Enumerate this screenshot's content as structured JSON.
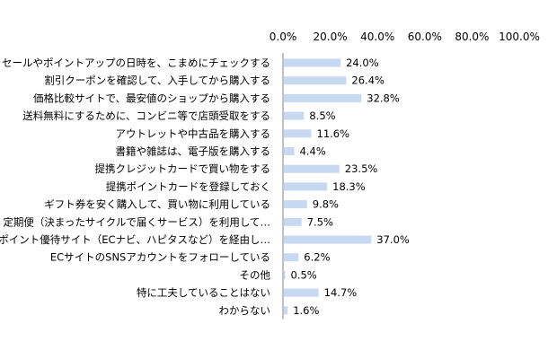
{
  "colors": {
    "bar": "#c6d9f1",
    "axis": "#808080",
    "text": "#000000"
  },
  "chart_data": {
    "type": "bar",
    "orientation": "horizontal",
    "title": "",
    "xlabel": "",
    "ylabel": "",
    "xlim": [
      0,
      100
    ],
    "x_ticks": [
      "0.0%",
      "20.0%",
      "40.0%",
      "60.0%",
      "80.0%",
      "100.0%"
    ],
    "grid": false,
    "legend": "none",
    "categories": [
      "セールやポイントアップの日時を、こまめにチェックする",
      "割引クーポンを確認して、入手してから購入する",
      "価格比較サイトで、最安値のショップから購入する",
      "送料無料にするために、コンビニ等で店頭受取をする",
      "アウトレットや中古品を購入する",
      "書籍や雑誌は、電子版を購入する",
      "提携クレジットカードで買い物をする",
      "提携ポイントカードを登録しておく",
      "ギフト券を安く購入して、買い物に利用している",
      "定期便（決まったサイクルで届くサービス）を利用して…",
      "ポイント優待サイト（ECナビ、ハピタスなど）を経由し…",
      "ECサイトのSNSアカウントをフォローしている",
      "その他",
      "特に工夫していることはない",
      "わからない"
    ],
    "values": [
      24.0,
      26.4,
      32.8,
      8.5,
      11.6,
      4.4,
      23.5,
      18.3,
      9.8,
      7.5,
      37.0,
      6.2,
      0.5,
      14.7,
      1.6
    ],
    "data_labels": [
      "24.0%",
      "26.4%",
      "32.8%",
      "8.5%",
      "11.6%",
      "4.4%",
      "23.5%",
      "18.3%",
      "9.8%",
      "7.5%",
      "37.0%",
      "6.2%",
      "0.5%",
      "14.7%",
      "1.6%"
    ]
  }
}
